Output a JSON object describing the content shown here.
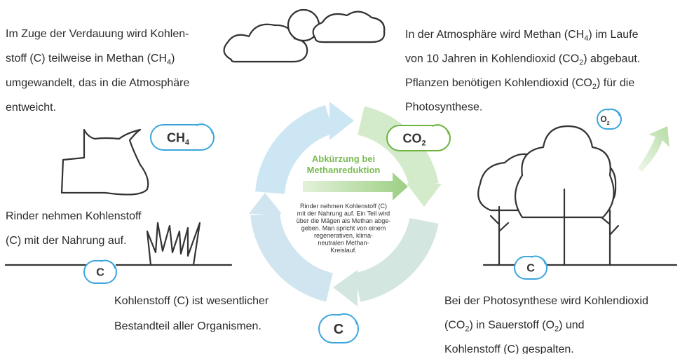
{
  "blocks": [
    {
      "lines": [
        [
          {
            "text": "Im Zuge der Verdauung wird Kohlen-"
          }
        ],
        [
          {
            "text": "stoff (C) teilweise in Methan (CH"
          },
          {
            "sub": "4"
          },
          {
            "text": ")"
          }
        ],
        [
          {
            "text": "umgewandelt, das in die Atmosphäre"
          }
        ],
        [
          {
            "text": "entweicht."
          }
        ]
      ]
    },
    {
      "lines": [
        [
          {
            "text": "In der Atmosphäre wird Methan (CH"
          },
          {
            "sub": "4"
          },
          {
            "text": ") im Laufe"
          }
        ],
        [
          {
            "text": "von 10 Jahren in Kohlendioxid (CO"
          },
          {
            "sub": "2"
          },
          {
            "text": ") abgebaut."
          }
        ],
        [
          {
            "text": "Pflanzen benötigen Kohlendioxid (CO"
          },
          {
            "sub": "2"
          },
          {
            "text": ") für die"
          }
        ],
        [
          {
            "text": "Photosynthese."
          }
        ]
      ]
    },
    {
      "lines": [
        [
          {
            "text": "Rinder nehmen Kohlenstoff"
          }
        ],
        [
          {
            "text": "(C) mit der Nahrung auf."
          }
        ]
      ]
    },
    {
      "lines": [
        [
          {
            "text": "Kohlenstoff (C) ist wesentlicher"
          }
        ],
        [
          {
            "text": "Bestandteil aller Organismen."
          }
        ]
      ]
    },
    {
      "lines": [
        [
          {
            "text": "Bei der Photosynthese wird Kohlendioxid"
          }
        ],
        [
          {
            "text": "(CO"
          },
          {
            "sub": "2"
          },
          {
            "text": ") in Sauerstoff (O"
          },
          {
            "sub": "2"
          },
          {
            "text": ") und"
          }
        ],
        [
          {
            "text": "Kohlenstoff (C) gespalten."
          }
        ]
      ]
    }
  ],
  "bubbles": [
    [
      {
        "text": "CH"
      },
      {
        "sub": "4"
      }
    ],
    [
      {
        "text": "CO"
      },
      {
        "sub": "2"
      }
    ],
    [
      {
        "text": "O"
      },
      {
        "sub": "2"
      }
    ],
    [
      {
        "text": "C"
      }
    ],
    [
      {
        "text": "C"
      }
    ],
    [
      {
        "text": "C"
      }
    ]
  ],
  "center": {
    "title": [
      "Abkürzung bei",
      "Methanreduktion"
    ],
    "text": [
      "Rinder nehmen Kohlenstoff (C)",
      "mit der Nahrung auf. Ein Teil wird",
      "über die Mägen als Methan abge-",
      "geben. Man spricht von einem",
      "regenerativen, klima-",
      "neutralen Methan-",
      "Kreislauf."
    ]
  }
}
